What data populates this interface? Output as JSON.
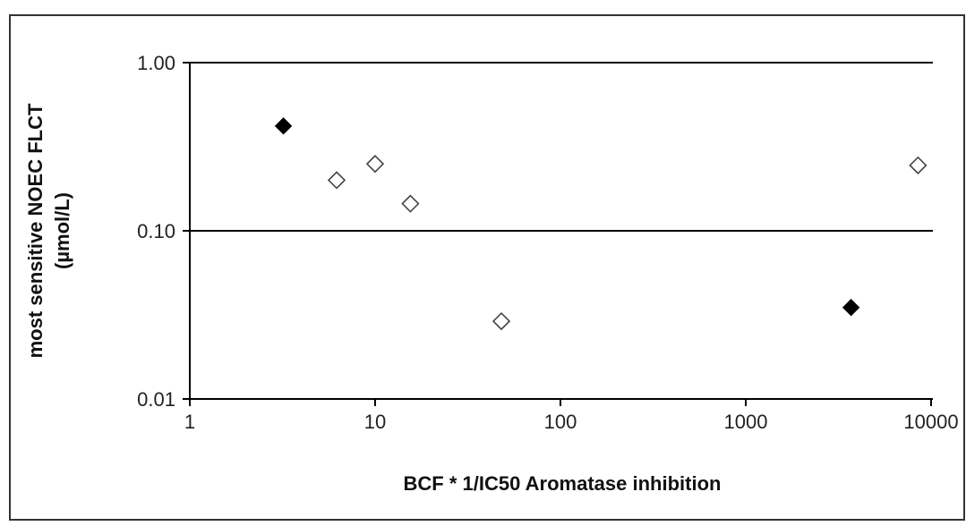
{
  "chart_data": {
    "type": "scatter",
    "title": "",
    "xlabel": "BCF * 1/IC50 Aromatase inhibition",
    "ylabel_line1": "most sensitive NOEC FLCT",
    "ylabel_line2": "(µmol/L)",
    "x_scale": "log",
    "y_scale": "log",
    "xlim": [
      1,
      10000
    ],
    "ylim": [
      0.01,
      1
    ],
    "x_ticks": [
      {
        "value": 1,
        "label": "1"
      },
      {
        "value": 10,
        "label": "10"
      },
      {
        "value": 100,
        "label": "100"
      },
      {
        "value": 1000,
        "label": "1000"
      },
      {
        "value": 10000,
        "label": "10000"
      }
    ],
    "y_ticks": [
      {
        "value": 0.01,
        "label": "0.01"
      },
      {
        "value": 0.1,
        "label": "0.10"
      },
      {
        "value": 1,
        "label": "1.00"
      }
    ],
    "grid": "horizontal major gridlines",
    "legend": "none",
    "series": [
      {
        "marker": "filled-diamond",
        "color": "#000000",
        "points": [
          {
            "x": 3.2,
            "y": 0.42
          },
          {
            "x": 3700,
            "y": 0.035
          }
        ]
      },
      {
        "marker": "open-diamond",
        "color": "#ffffff",
        "stroke": "#444444",
        "points": [
          {
            "x": 6.2,
            "y": 0.2
          },
          {
            "x": 10,
            "y": 0.25
          },
          {
            "x": 15.5,
            "y": 0.145
          },
          {
            "x": 48,
            "y": 0.029
          },
          {
            "x": 8500,
            "y": 0.245
          }
        ]
      }
    ]
  }
}
